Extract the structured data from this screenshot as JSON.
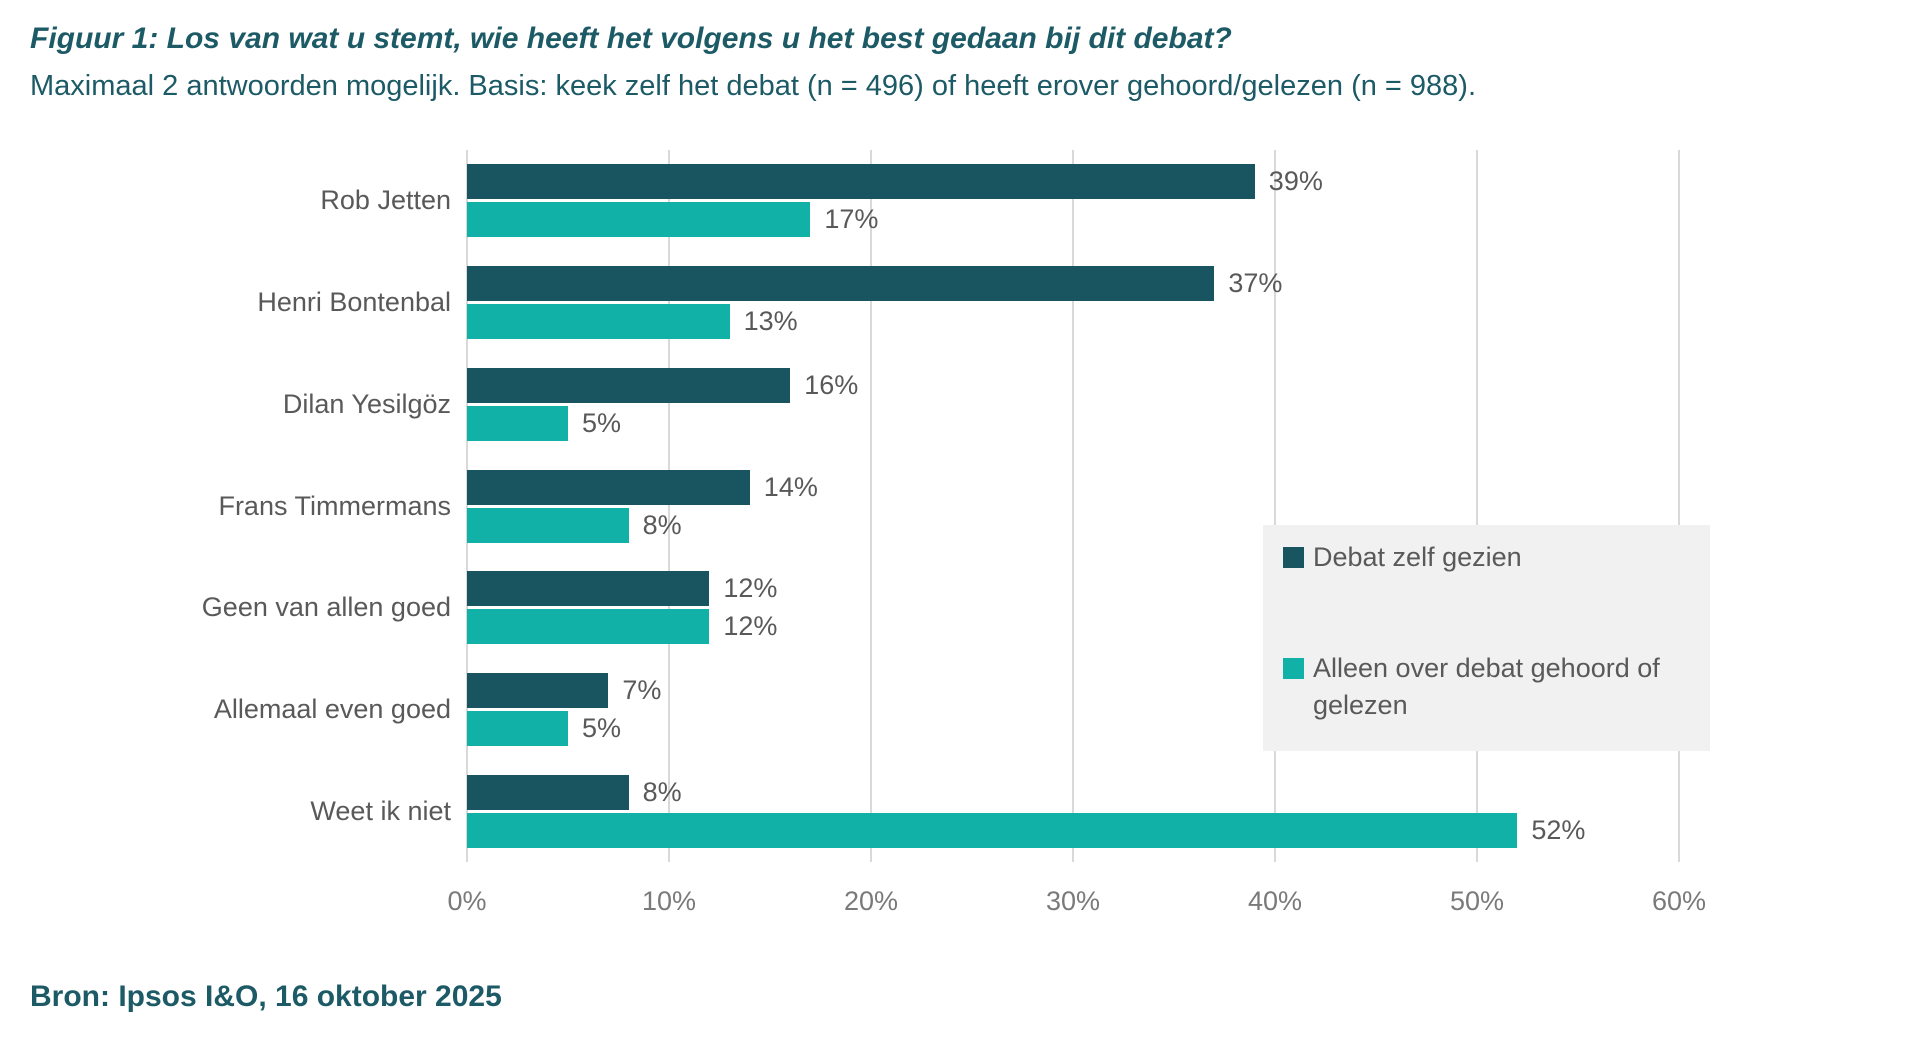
{
  "chart_data": {
    "type": "bar",
    "orientation": "horizontal",
    "title": "Figuur 1: Los van wat u stemt, wie heeft het volgens u het best gedaan bij dit debat?",
    "subtitle": "Maximaal 2 antwoorden mogelijk. Basis: keek zelf het debat (n = 496) of heeft erover gehoord/gelezen (n = 988).",
    "categories": [
      "Rob Jetten",
      "Henri Bontenbal",
      "Dilan Yesilgöz",
      "Frans Timmermans",
      "Geen van allen goed",
      "Allemaal even goed",
      "Weet ik niet"
    ],
    "series": [
      {
        "name": "Debat zelf gezien",
        "color": "#185560",
        "values": [
          39,
          37,
          16,
          14,
          12,
          7,
          8
        ],
        "labels": [
          "39%",
          "37%",
          "16%",
          "14%",
          "12%",
          "7%",
          "8%"
        ]
      },
      {
        "name": "Alleen over debat gehoord of gelezen",
        "color": "#12b1a7",
        "values": [
          17,
          13,
          5,
          8,
          12,
          5,
          52
        ],
        "labels": [
          "17%",
          "13%",
          "5%",
          "8%",
          "12%",
          "5%",
          "52%"
        ]
      }
    ],
    "xlim": [
      0,
      60
    ],
    "x_ticks": [
      "0%",
      "10%",
      "20%",
      "30%",
      "40%",
      "50%",
      "60%"
    ],
    "grid": "vertical-only",
    "legend_position": "middle-right-overlay"
  },
  "footer": {
    "source": "Bron: Ipsos I&O, 16 oktober 2025"
  },
  "colors": {
    "series_debat_zelf_gezien": "#185560",
    "series_alleen_gehoord_gelezen": "#12b1a7",
    "title_text": "#1c5a66",
    "category_label_text": "#595959",
    "value_label_text": "#595959",
    "axis_tick_text": "#7a7a7a",
    "gridline": "#d9d9d9",
    "legend_background": "#f1f1f1",
    "page_background": "#ffffff"
  }
}
